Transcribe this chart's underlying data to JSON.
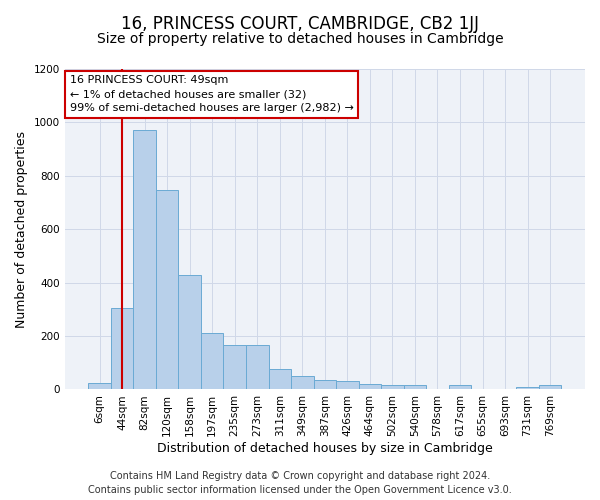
{
  "title": "16, PRINCESS COURT, CAMBRIDGE, CB2 1JJ",
  "subtitle": "Size of property relative to detached houses in Cambridge",
  "xlabel": "Distribution of detached houses by size in Cambridge",
  "ylabel": "Number of detached properties",
  "footer_line1": "Contains HM Land Registry data © Crown copyright and database right 2024.",
  "footer_line2": "Contains public sector information licensed under the Open Government Licence v3.0.",
  "bar_labels": [
    "6sqm",
    "44sqm",
    "82sqm",
    "120sqm",
    "158sqm",
    "197sqm",
    "235sqm",
    "273sqm",
    "311sqm",
    "349sqm",
    "387sqm",
    "426sqm",
    "464sqm",
    "502sqm",
    "540sqm",
    "578sqm",
    "617sqm",
    "655sqm",
    "693sqm",
    "731sqm",
    "769sqm"
  ],
  "bar_values": [
    25,
    305,
    970,
    748,
    430,
    210,
    165,
    165,
    75,
    50,
    35,
    30,
    20,
    15,
    15,
    0,
    15,
    0,
    0,
    10,
    15
  ],
  "bar_color": "#b8d0ea",
  "bar_edge_color": "#6aaad4",
  "ylim": [
    0,
    1200
  ],
  "yticks": [
    0,
    200,
    400,
    600,
    800,
    1000,
    1200
  ],
  "annotation_box_text": "16 PRINCESS COURT: 49sqm\n← 1% of detached houses are smaller (32)\n99% of semi-detached houses are larger (2,982) →",
  "annotation_box_color": "#ffffff",
  "annotation_box_edge_color": "#cc0000",
  "vline_x": 1,
  "vline_color": "#cc0000",
  "grid_color": "#d0d8e8",
  "bg_color": "#eef2f8",
  "title_fontsize": 12,
  "subtitle_fontsize": 10,
  "axis_label_fontsize": 9,
  "tick_fontsize": 7.5,
  "annotation_fontsize": 8,
  "footer_fontsize": 7
}
